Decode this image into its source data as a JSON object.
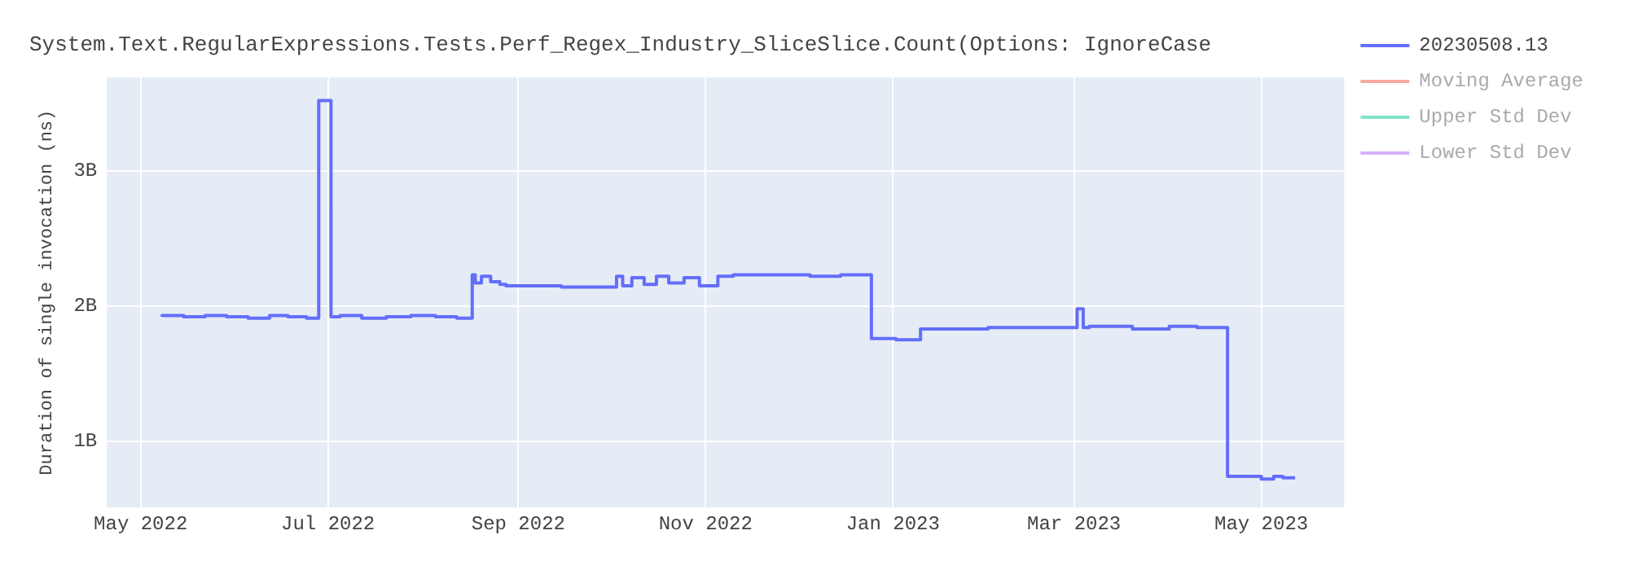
{
  "chart_data": {
    "type": "step",
    "title": "System.Text.RegularExpressions.Tests.Perf_Regex_Industry_SliceSlice.Count(Options: IgnoreCase",
    "ylabel": "Duration of single invocation (ns)",
    "xlim": [
      "2022-04-20",
      "2023-05-28"
    ],
    "xticks": [
      {
        "value": "2022-05-01",
        "label": "May 2022"
      },
      {
        "value": "2022-07-01",
        "label": "Jul 2022"
      },
      {
        "value": "2022-09-01",
        "label": "Sep 2022"
      },
      {
        "value": "2022-11-01",
        "label": "Nov 2022"
      },
      {
        "value": "2023-01-01",
        "label": "Jan 2023"
      },
      {
        "value": "2023-03-01",
        "label": "Mar 2023"
      },
      {
        "value": "2023-05-01",
        "label": "May 2023"
      }
    ],
    "ylim": [
      510000000,
      3690000000
    ],
    "yticks": [
      {
        "value": 1000000000,
        "label": "1B"
      },
      {
        "value": 2000000000,
        "label": "2B"
      },
      {
        "value": 3000000000,
        "label": "3B"
      }
    ],
    "grid": true,
    "legend": "right",
    "marker": "none",
    "line_style": "solid",
    "series": [
      {
        "name": "20230508.13",
        "color": "#636efa",
        "x": [
          "2022-05-08",
          "2022-05-15",
          "2022-05-22",
          "2022-05-29",
          "2022-06-05",
          "2022-06-12",
          "2022-06-18",
          "2022-06-24",
          "2022-06-28",
          "2022-07-02",
          "2022-07-05",
          "2022-07-12",
          "2022-07-20",
          "2022-07-28",
          "2022-08-05",
          "2022-08-12",
          "2022-08-17",
          "2022-08-18",
          "2022-08-20",
          "2022-08-23",
          "2022-08-26",
          "2022-08-28",
          "2022-09-15",
          "2022-10-03",
          "2022-10-05",
          "2022-10-08",
          "2022-10-12",
          "2022-10-16",
          "2022-10-20",
          "2022-10-25",
          "2022-10-30",
          "2022-11-05",
          "2022-11-10",
          "2022-11-20",
          "2022-12-05",
          "2022-12-15",
          "2022-12-25",
          "2023-01-02",
          "2023-01-10",
          "2023-01-20",
          "2023-02-01",
          "2023-02-15",
          "2023-03-02",
          "2023-03-04",
          "2023-03-06",
          "2023-03-20",
          "2023-04-01",
          "2023-04-10",
          "2023-04-20",
          "2023-05-01",
          "2023-05-05",
          "2023-05-08",
          "2023-05-12"
        ],
        "values": [
          1920000000,
          1930000000,
          1920000000,
          1930000000,
          1920000000,
          1910000000,
          1930000000,
          1920000000,
          1910000000,
          3520000000,
          1920000000,
          1930000000,
          1910000000,
          1920000000,
          1930000000,
          1920000000,
          1910000000,
          2230000000,
          2170000000,
          2220000000,
          2180000000,
          2160000000,
          2150000000,
          2140000000,
          2220000000,
          2150000000,
          2210000000,
          2160000000,
          2220000000,
          2170000000,
          2210000000,
          2150000000,
          2220000000,
          2230000000,
          2230000000,
          2220000000,
          2230000000,
          1760000000,
          1750000000,
          1830000000,
          1830000000,
          1840000000,
          1840000000,
          1980000000,
          1840000000,
          1850000000,
          1830000000,
          1850000000,
          1840000000,
          740000000,
          720000000,
          740000000,
          730000000
        ]
      },
      {
        "name": "Moving Average",
        "color": "#ef553b"
      },
      {
        "name": "Upper Std Dev",
        "color": "#00cc96"
      },
      {
        "name": "Lower Std Dev",
        "color": "#ab63fa"
      }
    ]
  }
}
